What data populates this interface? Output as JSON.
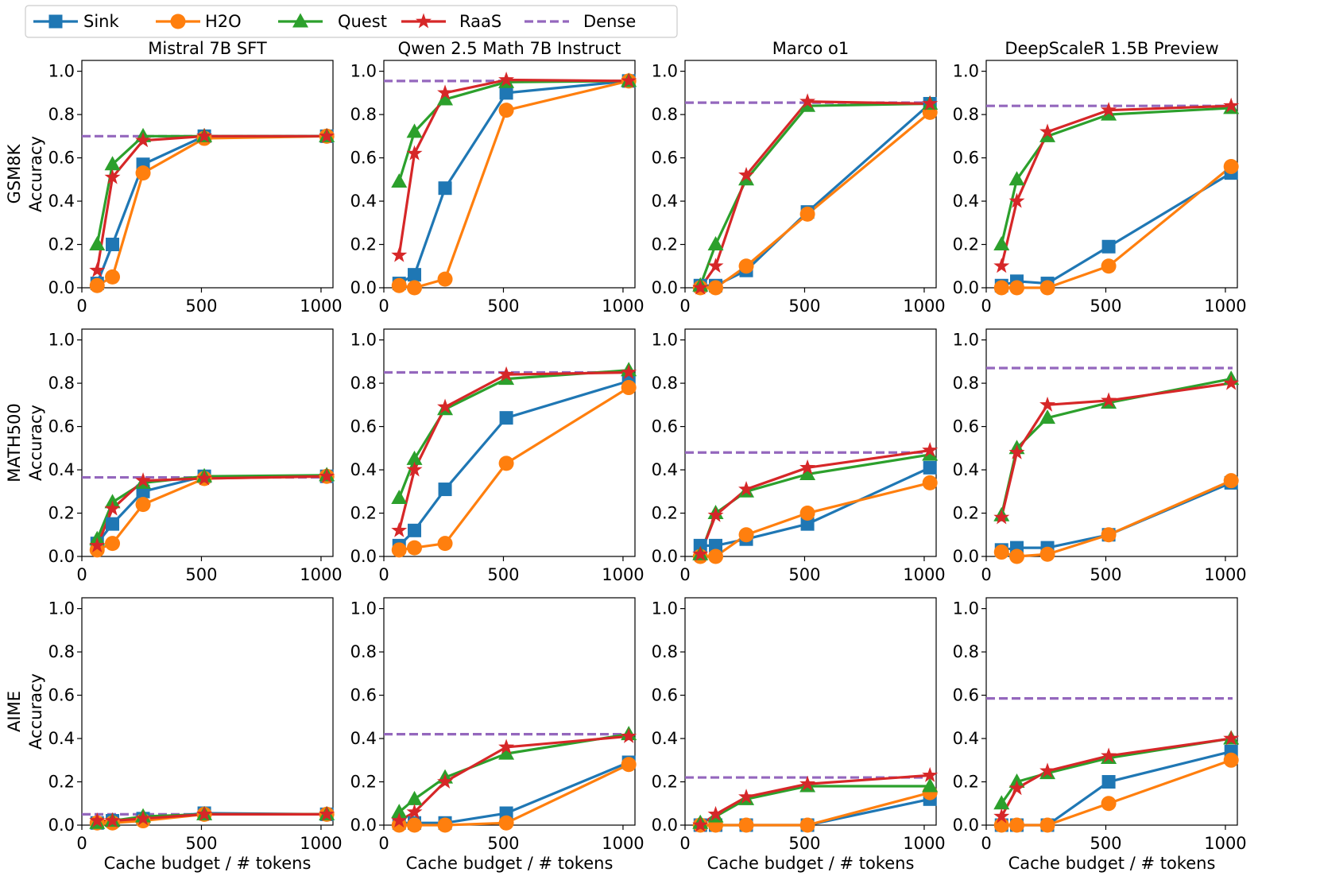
{
  "legend": {
    "placement": "top-left",
    "entries": [
      {
        "label": "Sink",
        "color": "#1f77b4",
        "marker": "square"
      },
      {
        "label": "H2O",
        "color": "#ff7f0e",
        "marker": "circle"
      },
      {
        "label": "Quest",
        "color": "#2ca02c",
        "marker": "triangle"
      },
      {
        "label": "RaaS",
        "color": "#d62728",
        "marker": "star"
      },
      {
        "label": "Dense",
        "color": "#9467bd",
        "marker": "dashed-line"
      }
    ]
  },
  "columns": [
    "Mistral 7B SFT",
    "Qwen 2.5 Math 7B Instruct",
    "Marco o1",
    "DeepScaleR 1.5B Preview"
  ],
  "rows": [
    {
      "line1": "GSM8K",
      "line2": "Accuracy"
    },
    {
      "line1": "MATH500",
      "line2": "Accuracy"
    },
    {
      "line1": "AIME",
      "line2": "Accuracy"
    }
  ],
  "x_axis_label": "Cache budget / # tokens",
  "x_ticks": [
    "0",
    "500",
    "1000"
  ],
  "y_ticks": [
    "0.0",
    "0.2",
    "0.4",
    "0.6",
    "0.8",
    "1.0"
  ],
  "chart_data": {
    "type": "line",
    "xlim": [
      0,
      1050
    ],
    "ylim": [
      0,
      1.05
    ],
    "x": [
      64,
      128,
      256,
      512,
      1024
    ],
    "xlabel": "Cache budget / # tokens",
    "ylabel": "Accuracy",
    "grid": false,
    "series_names": [
      "Sink",
      "H2O",
      "Quest",
      "RaaS"
    ],
    "panels": [
      {
        "row": "GSM8K",
        "model": "Mistral 7B SFT",
        "dense": 0.7,
        "series": {
          "Sink": [
            0.02,
            0.2,
            0.57,
            0.7,
            0.7
          ],
          "H2O": [
            0.01,
            0.05,
            0.53,
            0.69,
            0.7
          ],
          "Quest": [
            0.2,
            0.57,
            0.7,
            0.7,
            0.7
          ],
          "RaaS": [
            0.08,
            0.51,
            0.68,
            0.7,
            0.7
          ]
        }
      },
      {
        "row": "GSM8K",
        "model": "Qwen 2.5 Math 7B Instruct",
        "dense": 0.955,
        "series": {
          "Sink": [
            0.02,
            0.06,
            0.46,
            0.9,
            0.955
          ],
          "H2O": [
            0.01,
            0.0,
            0.04,
            0.82,
            0.955
          ],
          "Quest": [
            0.49,
            0.72,
            0.87,
            0.95,
            0.955
          ],
          "RaaS": [
            0.15,
            0.62,
            0.9,
            0.96,
            0.955
          ]
        }
      },
      {
        "row": "GSM8K",
        "model": "Marco o1",
        "dense": 0.855,
        "series": {
          "Sink": [
            0.01,
            0.01,
            0.08,
            0.35,
            0.85
          ],
          "H2O": [
            0.0,
            0.0,
            0.1,
            0.34,
            0.81
          ],
          "Quest": [
            0.01,
            0.2,
            0.5,
            0.84,
            0.85
          ],
          "RaaS": [
            0.0,
            0.1,
            0.52,
            0.86,
            0.85
          ]
        }
      },
      {
        "row": "GSM8K",
        "model": "DeepScaleR 1.5B Preview",
        "dense": 0.84,
        "series": {
          "Sink": [
            0.01,
            0.03,
            0.02,
            0.19,
            0.53
          ],
          "H2O": [
            0.0,
            0.0,
            0.0,
            0.1,
            0.56
          ],
          "Quest": [
            0.2,
            0.5,
            0.7,
            0.8,
            0.83
          ],
          "RaaS": [
            0.1,
            0.4,
            0.72,
            0.82,
            0.84
          ]
        }
      },
      {
        "row": "MATH500",
        "model": "Mistral 7B SFT",
        "dense": 0.365,
        "series": {
          "Sink": [
            0.06,
            0.15,
            0.3,
            0.37,
            0.37
          ],
          "H2O": [
            0.03,
            0.06,
            0.24,
            0.36,
            0.37
          ],
          "Quest": [
            0.08,
            0.25,
            0.34,
            0.37,
            0.375
          ],
          "RaaS": [
            0.05,
            0.22,
            0.35,
            0.36,
            0.37
          ]
        }
      },
      {
        "row": "MATH500",
        "model": "Qwen 2.5 Math 7B Instruct",
        "dense": 0.85,
        "series": {
          "Sink": [
            0.05,
            0.12,
            0.31,
            0.64,
            0.81
          ],
          "H2O": [
            0.03,
            0.04,
            0.06,
            0.43,
            0.78
          ],
          "Quest": [
            0.27,
            0.45,
            0.68,
            0.82,
            0.86
          ],
          "RaaS": [
            0.12,
            0.4,
            0.69,
            0.84,
            0.85
          ]
        }
      },
      {
        "row": "MATH500",
        "model": "Marco o1",
        "dense": 0.48,
        "series": {
          "Sink": [
            0.05,
            0.05,
            0.08,
            0.15,
            0.41
          ],
          "H2O": [
            0.0,
            0.0,
            0.1,
            0.2,
            0.34
          ],
          "Quest": [
            0.01,
            0.2,
            0.3,
            0.38,
            0.47
          ],
          "RaaS": [
            0.01,
            0.19,
            0.31,
            0.41,
            0.49
          ]
        }
      },
      {
        "row": "MATH500",
        "model": "DeepScaleR 1.5B Preview",
        "dense": 0.87,
        "series": {
          "Sink": [
            0.03,
            0.04,
            0.04,
            0.1,
            0.34
          ],
          "H2O": [
            0.02,
            0.0,
            0.01,
            0.1,
            0.35
          ],
          "Quest": [
            0.19,
            0.5,
            0.64,
            0.71,
            0.82
          ],
          "RaaS": [
            0.18,
            0.48,
            0.7,
            0.72,
            0.8
          ]
        }
      },
      {
        "row": "AIME",
        "model": "Mistral 7B SFT",
        "dense": 0.05,
        "series": {
          "Sink": [
            0.01,
            0.02,
            0.03,
            0.055,
            0.05
          ],
          "H2O": [
            0.01,
            0.01,
            0.02,
            0.05,
            0.05
          ],
          "Quest": [
            0.01,
            0.02,
            0.04,
            0.05,
            0.05
          ],
          "RaaS": [
            0.02,
            0.02,
            0.03,
            0.05,
            0.05
          ]
        }
      },
      {
        "row": "AIME",
        "model": "Qwen 2.5 Math 7B Instruct",
        "dense": 0.42,
        "series": {
          "Sink": [
            0.01,
            0.01,
            0.01,
            0.055,
            0.29
          ],
          "H2O": [
            0.0,
            0.0,
            0.0,
            0.01,
            0.28
          ],
          "Quest": [
            0.06,
            0.12,
            0.22,
            0.33,
            0.42
          ],
          "RaaS": [
            0.02,
            0.06,
            0.2,
            0.36,
            0.41
          ]
        }
      },
      {
        "row": "AIME",
        "model": "Marco o1",
        "dense": 0.22,
        "series": {
          "Sink": [
            0.0,
            0.0,
            0.0,
            0.0,
            0.12
          ],
          "H2O": [
            0.0,
            0.0,
            0.0,
            0.0,
            0.15
          ],
          "Quest": [
            0.01,
            0.04,
            0.12,
            0.18,
            0.18
          ],
          "RaaS": [
            0.0,
            0.05,
            0.13,
            0.19,
            0.23
          ]
        }
      },
      {
        "row": "AIME",
        "model": "DeepScaleR 1.5B Preview",
        "dense": 0.585,
        "series": {
          "Sink": [
            0.0,
            0.0,
            0.0,
            0.2,
            0.34
          ],
          "H2O": [
            0.0,
            0.0,
            0.0,
            0.1,
            0.3
          ],
          "Quest": [
            0.1,
            0.2,
            0.24,
            0.31,
            0.4
          ],
          "RaaS": [
            0.04,
            0.17,
            0.25,
            0.32,
            0.4
          ]
        }
      }
    ]
  }
}
